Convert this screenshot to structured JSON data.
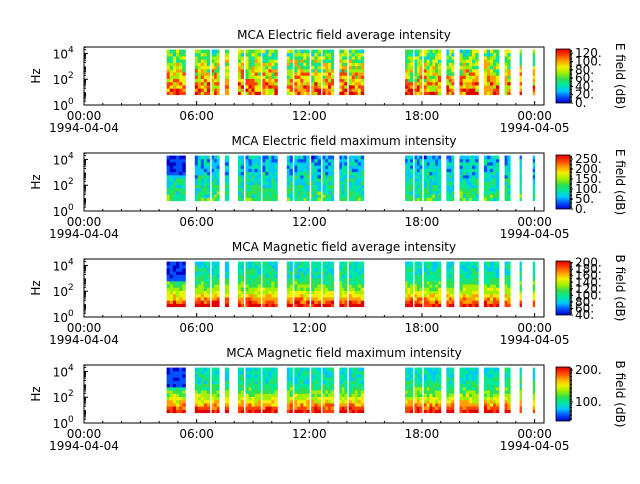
{
  "chart_data": [
    {
      "type": "heatmap",
      "title": "MCA  Electric field average intensity",
      "ylabel": "Hz",
      "y_ticks": [
        "10",
        "10",
        "10"
      ],
      "y_tick_exponents": [
        "0",
        "2",
        "4"
      ],
      "x_ticks": [
        "00:00",
        "06:00",
        "12:00",
        "18:00",
        "00:00"
      ],
      "x_dates": [
        "1994-04-04",
        "1994-04-05"
      ],
      "x_hours": [
        0,
        6,
        12,
        18,
        24
      ],
      "xlim_hours": [
        0,
        24.5
      ],
      "y_log10_range": [
        0,
        4.5
      ],
      "data_log10_range": [
        0.8,
        4.3
      ],
      "colorbar_label": "E field (dB)",
      "colorbar_ticks": [
        "0.",
        "20.",
        "40.",
        "60.",
        "80.",
        "100.",
        "120."
      ],
      "colorbar_values": [
        0,
        20,
        40,
        60,
        80,
        100,
        120
      ],
      "colorbar_range": [
        0,
        130
      ],
      "data_segments_hours": [
        [
          4.4,
          5.4
        ],
        [
          5.9,
          6.7
        ],
        [
          6.8,
          7.2
        ],
        [
          7.5,
          7.7
        ],
        [
          8.2,
          8.5
        ],
        [
          8.6,
          9.4
        ],
        [
          9.5,
          10.3
        ],
        [
          10.8,
          11.1
        ],
        [
          11.2,
          12.0
        ],
        [
          12.1,
          12.6
        ],
        [
          12.7,
          13.3
        ],
        [
          13.6,
          14.0
        ],
        [
          14.1,
          14.9
        ],
        [
          17.1,
          17.5
        ],
        [
          17.6,
          18.0
        ],
        [
          18.1,
          19.0
        ],
        [
          19.3,
          19.7
        ],
        [
          20.0,
          21.0
        ],
        [
          21.3,
          22.1
        ],
        [
          22.4,
          22.7
        ],
        [
          23.2,
          23.3
        ],
        [
          23.9,
          24.0
        ]
      ],
      "palette": [
        "#0000c8",
        "#0050ff",
        "#00c8ff",
        "#00e8a0",
        "#30e050",
        "#a0f000",
        "#f0f000",
        "#ffa000",
        "#ff4000",
        "#e00000"
      ]
    },
    {
      "type": "heatmap",
      "title": "MCA  Electric field maximum intensity",
      "ylabel": "Hz",
      "y_ticks": [
        "10",
        "10",
        "10"
      ],
      "y_tick_exponents": [
        "0",
        "2",
        "4"
      ],
      "x_ticks": [
        "00:00",
        "06:00",
        "12:00",
        "18:00",
        "00:00"
      ],
      "x_dates": [
        "1994-04-04",
        "1994-04-05"
      ],
      "x_hours": [
        0,
        6,
        12,
        18,
        24
      ],
      "xlim_hours": [
        0,
        24.5
      ],
      "y_log10_range": [
        0,
        4.5
      ],
      "data_log10_range": [
        0.8,
        4.3
      ],
      "colorbar_label": "E field (dB)",
      "colorbar_ticks": [
        "0.",
        "50.",
        "100.",
        "150.",
        "200.",
        "250."
      ],
      "colorbar_values": [
        0,
        50,
        100,
        150,
        200,
        250
      ],
      "colorbar_range": [
        0,
        270
      ],
      "data_segments_hours": [
        [
          4.4,
          5.4
        ],
        [
          5.9,
          6.7
        ],
        [
          6.8,
          7.2
        ],
        [
          7.5,
          7.7
        ],
        [
          8.2,
          8.5
        ],
        [
          8.6,
          9.4
        ],
        [
          9.5,
          10.3
        ],
        [
          10.8,
          11.1
        ],
        [
          11.2,
          12.0
        ],
        [
          12.1,
          12.6
        ],
        [
          12.7,
          13.3
        ],
        [
          13.6,
          14.0
        ],
        [
          14.1,
          14.9
        ],
        [
          17.1,
          17.5
        ],
        [
          17.6,
          18.0
        ],
        [
          18.1,
          19.0
        ],
        [
          19.3,
          19.7
        ],
        [
          20.0,
          21.0
        ],
        [
          21.3,
          22.1
        ],
        [
          22.4,
          22.7
        ],
        [
          23.2,
          23.3
        ],
        [
          23.9,
          24.0
        ]
      ],
      "palette": [
        "#0000c8",
        "#0050ff",
        "#00c8ff",
        "#00e8a0",
        "#30e050",
        "#a0f000",
        "#f0f000",
        "#ffa000",
        "#ff4000",
        "#e00000"
      ]
    },
    {
      "type": "heatmap",
      "title": "MCA  Magnetic field average intensity",
      "ylabel": "Hz",
      "y_ticks": [
        "10",
        "10",
        "10"
      ],
      "y_tick_exponents": [
        "0",
        "2",
        "4"
      ],
      "x_ticks": [
        "00:00",
        "06:00",
        "12:00",
        "18:00",
        "00:00"
      ],
      "x_dates": [
        "1994-04-04",
        "1994-04-05"
      ],
      "x_hours": [
        0,
        6,
        12,
        18,
        24
      ],
      "xlim_hours": [
        0,
        24.5
      ],
      "y_log10_range": [
        0,
        4.5
      ],
      "data_log10_range": [
        0.8,
        4.3
      ],
      "colorbar_label": "B field (dB)",
      "colorbar_ticks": [
        "40.",
        "60.",
        "80.",
        "100.",
        "120.",
        "140.",
        "160.",
        "180.",
        "200."
      ],
      "colorbar_values": [
        40,
        60,
        80,
        100,
        120,
        140,
        160,
        180,
        200
      ],
      "colorbar_range": [
        40,
        205
      ],
      "data_segments_hours": [
        [
          4.4,
          5.4
        ],
        [
          5.9,
          6.7
        ],
        [
          6.8,
          7.2
        ],
        [
          7.5,
          7.7
        ],
        [
          8.2,
          8.5
        ],
        [
          8.6,
          9.4
        ],
        [
          9.5,
          10.3
        ],
        [
          10.8,
          11.1
        ],
        [
          11.2,
          12.0
        ],
        [
          12.1,
          12.6
        ],
        [
          12.7,
          13.3
        ],
        [
          13.6,
          14.0
        ],
        [
          14.1,
          14.9
        ],
        [
          17.1,
          17.5
        ],
        [
          17.6,
          18.0
        ],
        [
          18.1,
          19.0
        ],
        [
          19.3,
          19.7
        ],
        [
          20.0,
          21.0
        ],
        [
          21.3,
          22.1
        ],
        [
          22.4,
          22.7
        ],
        [
          23.2,
          23.3
        ],
        [
          23.9,
          24.0
        ]
      ],
      "palette": [
        "#0000c8",
        "#0050ff",
        "#00c8ff",
        "#00e8a0",
        "#30e050",
        "#a0f000",
        "#f0f000",
        "#ffa000",
        "#ff4000",
        "#e00000"
      ]
    },
    {
      "type": "heatmap",
      "title": "MCA  Magnetic field maximum intensity",
      "ylabel": "Hz",
      "y_ticks": [
        "10",
        "10",
        "10"
      ],
      "y_tick_exponents": [
        "0",
        "2",
        "4"
      ],
      "x_ticks": [
        "00:00",
        "06:00",
        "12:00",
        "18:00",
        "00:00"
      ],
      "x_dates": [
        "1994-04-04",
        "1994-04-05"
      ],
      "x_hours": [
        0,
        6,
        12,
        18,
        24
      ],
      "xlim_hours": [
        0,
        24.5
      ],
      "y_log10_range": [
        0,
        4.5
      ],
      "data_log10_range": [
        0.8,
        4.3
      ],
      "colorbar_label": "B field (dB)",
      "colorbar_ticks": [
        "100.",
        "200."
      ],
      "colorbar_values": [
        100,
        200
      ],
      "colorbar_range": [
        40,
        210
      ],
      "data_segments_hours": [
        [
          4.4,
          5.4
        ],
        [
          5.9,
          6.7
        ],
        [
          6.8,
          7.2
        ],
        [
          7.5,
          7.7
        ],
        [
          8.2,
          8.5
        ],
        [
          8.6,
          9.4
        ],
        [
          9.5,
          10.3
        ],
        [
          10.8,
          11.1
        ],
        [
          11.2,
          12.0
        ],
        [
          12.1,
          12.6
        ],
        [
          12.7,
          13.3
        ],
        [
          13.6,
          14.0
        ],
        [
          14.1,
          14.9
        ],
        [
          17.1,
          17.5
        ],
        [
          17.6,
          18.0
        ],
        [
          18.1,
          19.0
        ],
        [
          19.3,
          19.7
        ],
        [
          20.0,
          21.0
        ],
        [
          21.3,
          22.1
        ],
        [
          22.4,
          22.7
        ],
        [
          23.2,
          23.3
        ],
        [
          23.9,
          24.0
        ]
      ],
      "palette": [
        "#0000c8",
        "#0050ff",
        "#00c8ff",
        "#00e8a0",
        "#30e050",
        "#a0f000",
        "#f0f000",
        "#ffa000",
        "#ff4000",
        "#e00000"
      ]
    }
  ]
}
